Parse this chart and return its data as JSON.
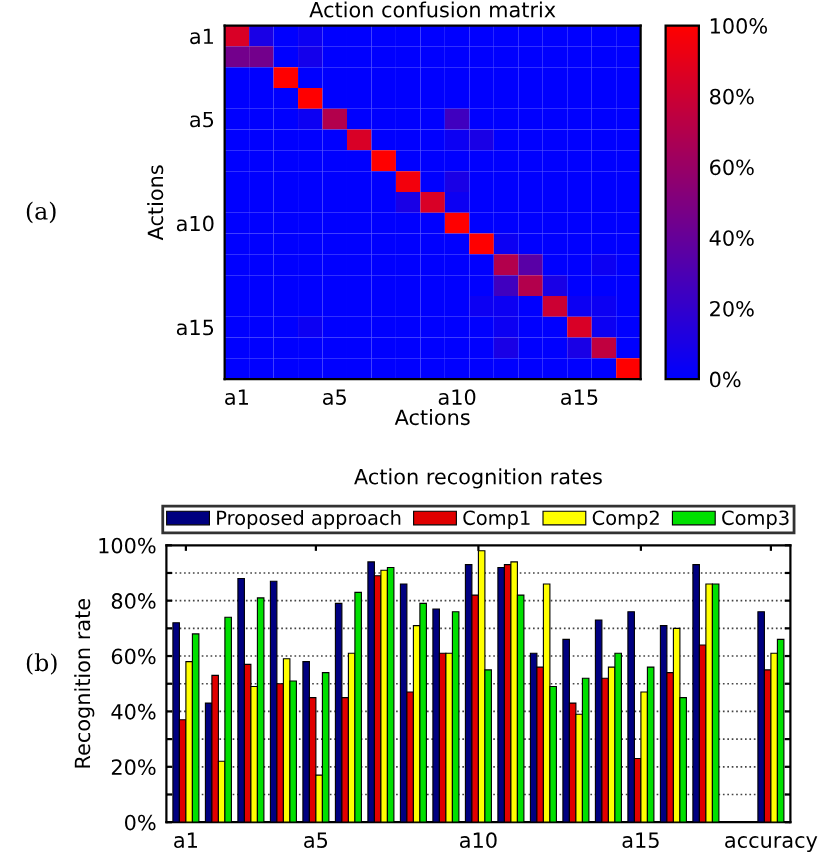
{
  "chart_data": [
    {
      "type": "heatmap",
      "title": "Action confusion matrix",
      "xlabel": "Actions",
      "ylabel": "Actions",
      "annotations": [
        "(a)"
      ],
      "categories": [
        "a1",
        null,
        null,
        null,
        "a5",
        null,
        null,
        null,
        null,
        "a10",
        null,
        null,
        null,
        null,
        "a15",
        null,
        null
      ],
      "y_categories": [
        "a1",
        null,
        null,
        null,
        "a5",
        null,
        null,
        null,
        null,
        "a10",
        null,
        null,
        null,
        null,
        "a15",
        null,
        null
      ],
      "cells": [
        [
          85,
          10,
          0,
          5,
          0,
          0,
          0,
          0,
          0,
          0,
          0,
          0,
          0,
          0,
          0,
          0,
          0
        ],
        [
          45,
          45,
          0,
          8,
          0,
          0,
          0,
          0,
          0,
          0,
          0,
          0,
          0,
          0,
          0,
          0,
          0
        ],
        [
          0,
          0,
          100,
          0,
          0,
          0,
          0,
          0,
          0,
          0,
          0,
          0,
          0,
          0,
          0,
          0,
          0
        ],
        [
          0,
          0,
          0,
          100,
          0,
          0,
          0,
          0,
          0,
          0,
          0,
          0,
          0,
          0,
          0,
          0,
          0
        ],
        [
          0,
          0,
          0,
          5,
          70,
          0,
          0,
          0,
          0,
          25,
          0,
          0,
          0,
          0,
          0,
          0,
          0
        ],
        [
          0,
          0,
          0,
          0,
          0,
          85,
          0,
          0,
          0,
          5,
          10,
          0,
          0,
          0,
          0,
          0,
          0
        ],
        [
          0,
          0,
          0,
          0,
          0,
          0,
          100,
          0,
          0,
          0,
          0,
          0,
          0,
          0,
          0,
          0,
          0
        ],
        [
          0,
          0,
          0,
          0,
          0,
          0,
          0,
          95,
          0,
          10,
          0,
          0,
          0,
          0,
          0,
          0,
          0
        ],
        [
          0,
          0,
          0,
          0,
          0,
          0,
          0,
          10,
          85,
          5,
          0,
          0,
          0,
          0,
          0,
          0,
          0
        ],
        [
          0,
          0,
          0,
          0,
          0,
          0,
          0,
          0,
          0,
          100,
          0,
          0,
          0,
          0,
          0,
          0,
          0
        ],
        [
          0,
          0,
          0,
          0,
          0,
          0,
          0,
          0,
          0,
          0,
          100,
          5,
          0,
          0,
          0,
          0,
          0
        ],
        [
          0,
          0,
          0,
          0,
          0,
          0,
          0,
          0,
          0,
          0,
          0,
          70,
          35,
          0,
          0,
          5,
          0
        ],
        [
          0,
          0,
          0,
          0,
          0,
          0,
          0,
          0,
          0,
          0,
          0,
          25,
          70,
          10,
          0,
          0,
          0
        ],
        [
          0,
          0,
          0,
          0,
          0,
          0,
          0,
          0,
          0,
          0,
          5,
          5,
          0,
          80,
          5,
          5,
          0
        ],
        [
          0,
          0,
          0,
          5,
          0,
          0,
          0,
          0,
          0,
          0,
          0,
          5,
          0,
          0,
          85,
          5,
          0
        ],
        [
          0,
          0,
          0,
          0,
          0,
          0,
          0,
          0,
          0,
          0,
          0,
          10,
          0,
          0,
          10,
          75,
          0
        ],
        [
          0,
          0,
          0,
          0,
          0,
          0,
          0,
          0,
          0,
          0,
          0,
          0,
          0,
          0,
          0,
          0,
          100
        ]
      ],
      "clim": [
        0,
        100
      ],
      "cticks": [
        {
          "value": 0,
          "label": "0%"
        },
        {
          "value": 20,
          "label": "20%"
        },
        {
          "value": 40,
          "label": "40%"
        },
        {
          "value": 60,
          "label": "60%"
        },
        {
          "value": 80,
          "label": "80%"
        },
        {
          "value": 100,
          "label": "100%"
        }
      ]
    },
    {
      "type": "bar",
      "title": "Action recognition rates",
      "ylabel": "Recognition rate",
      "annotations": [
        "(b)"
      ],
      "categories": [
        "a1",
        null,
        null,
        null,
        "a5",
        null,
        null,
        null,
        null,
        "a10",
        null,
        null,
        null,
        null,
        "a15",
        null,
        null,
        null,
        "accuracy"
      ],
      "series": [
        {
          "name": "Proposed approach",
          "color": "#000080",
          "values": [
            72,
            43,
            88,
            87,
            58,
            79,
            94,
            86,
            77,
            93,
            92,
            61,
            66,
            73,
            76,
            71,
            93,
            null,
            76
          ]
        },
        {
          "name": "Comp1",
          "color": "#e00000",
          "values": [
            37,
            53,
            57,
            50,
            45,
            45,
            89,
            47,
            61,
            82,
            93,
            56,
            43,
            52,
            23,
            54,
            64,
            null,
            55
          ]
        },
        {
          "name": "Comp2",
          "color": "#ffff00",
          "values": [
            58,
            22,
            49,
            59,
            17,
            61,
            91,
            71,
            61,
            98,
            94,
            86,
            39,
            56,
            47,
            70,
            86,
            null,
            61
          ]
        },
        {
          "name": "Comp3",
          "color": "#00e000",
          "values": [
            68,
            74,
            81,
            51,
            54,
            83,
            92,
            79,
            76,
            55,
            82,
            49,
            52,
            61,
            56,
            45,
            86,
            null,
            66
          ]
        }
      ],
      "ylim": [
        0,
        100
      ],
      "yticks": [
        {
          "value": 0,
          "label": "0%"
        },
        {
          "value": 10,
          "label": null
        },
        {
          "value": 20,
          "label": "20%"
        },
        {
          "value": 30,
          "label": null
        },
        {
          "value": 40,
          "label": "40%"
        },
        {
          "value": 50,
          "label": null
        },
        {
          "value": 60,
          "label": "60%"
        },
        {
          "value": 70,
          "label": null
        },
        {
          "value": 80,
          "label": "80%"
        },
        {
          "value": 90,
          "label": null
        },
        {
          "value": 100,
          "label": "100%"
        }
      ],
      "grid": "y",
      "legend": "top"
    }
  ]
}
